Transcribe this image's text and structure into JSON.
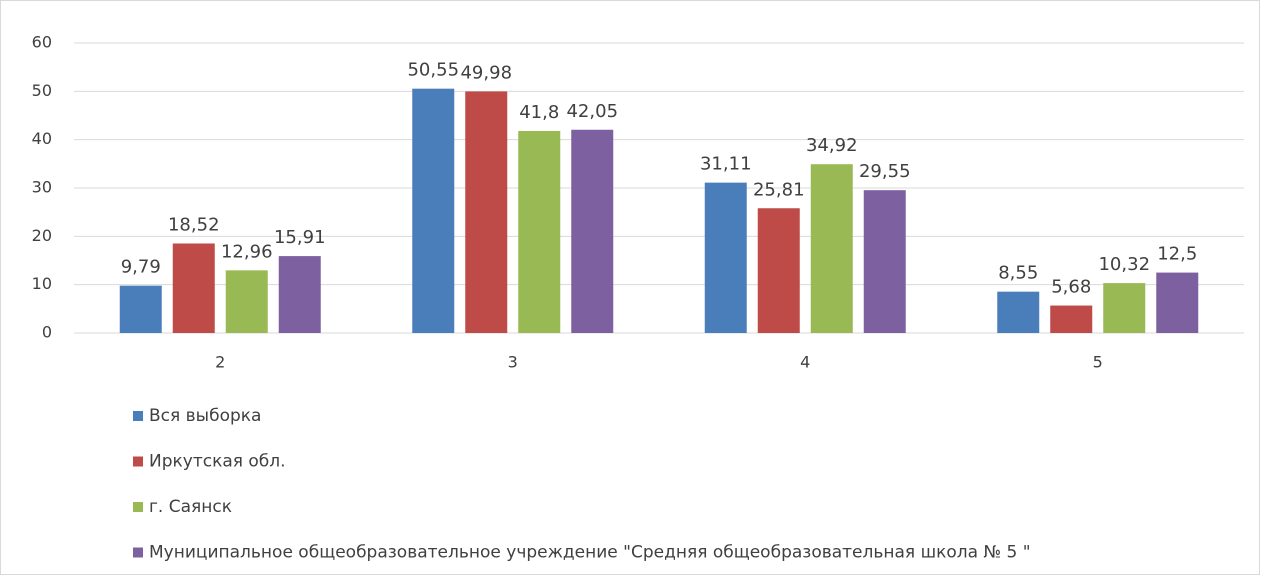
{
  "chart_data": {
    "type": "bar",
    "categories": [
      "2",
      "3",
      "4",
      "5"
    ],
    "series": [
      {
        "name": "Вся выборка",
        "color": "#4a7ebb",
        "values": [
          9.79,
          50.55,
          31.11,
          8.55
        ],
        "value_labels": [
          "9,79",
          "50,55",
          "31,11",
          "8,55"
        ]
      },
      {
        "name": "Иркутская обл.",
        "color": "#be4b48",
        "values": [
          18.52,
          49.98,
          25.81,
          5.68
        ],
        "value_labels": [
          "18,52",
          "49,98",
          "25,81",
          "5,68"
        ]
      },
      {
        "name": "г. Саянск",
        "color": "#98b954",
        "values": [
          12.96,
          41.8,
          34.92,
          10.32
        ],
        "value_labels": [
          "12,96",
          "41,8",
          "34,92",
          "10,32"
        ]
      },
      {
        "name": "Муниципальное общеобразовательное учреждение \"Средняя общеобразовательная школа № 5  \"",
        "color": "#7d60a0",
        "values": [
          15.91,
          42.05,
          29.55,
          12.5
        ],
        "value_labels": [
          "15,91",
          "42,05",
          "29,55",
          "12,5"
        ]
      }
    ],
    "ylim": [
      0,
      60
    ],
    "yticks": [
      0,
      10,
      20,
      30,
      40,
      50,
      60
    ],
    "grid": true,
    "legend": "bottom-left"
  }
}
